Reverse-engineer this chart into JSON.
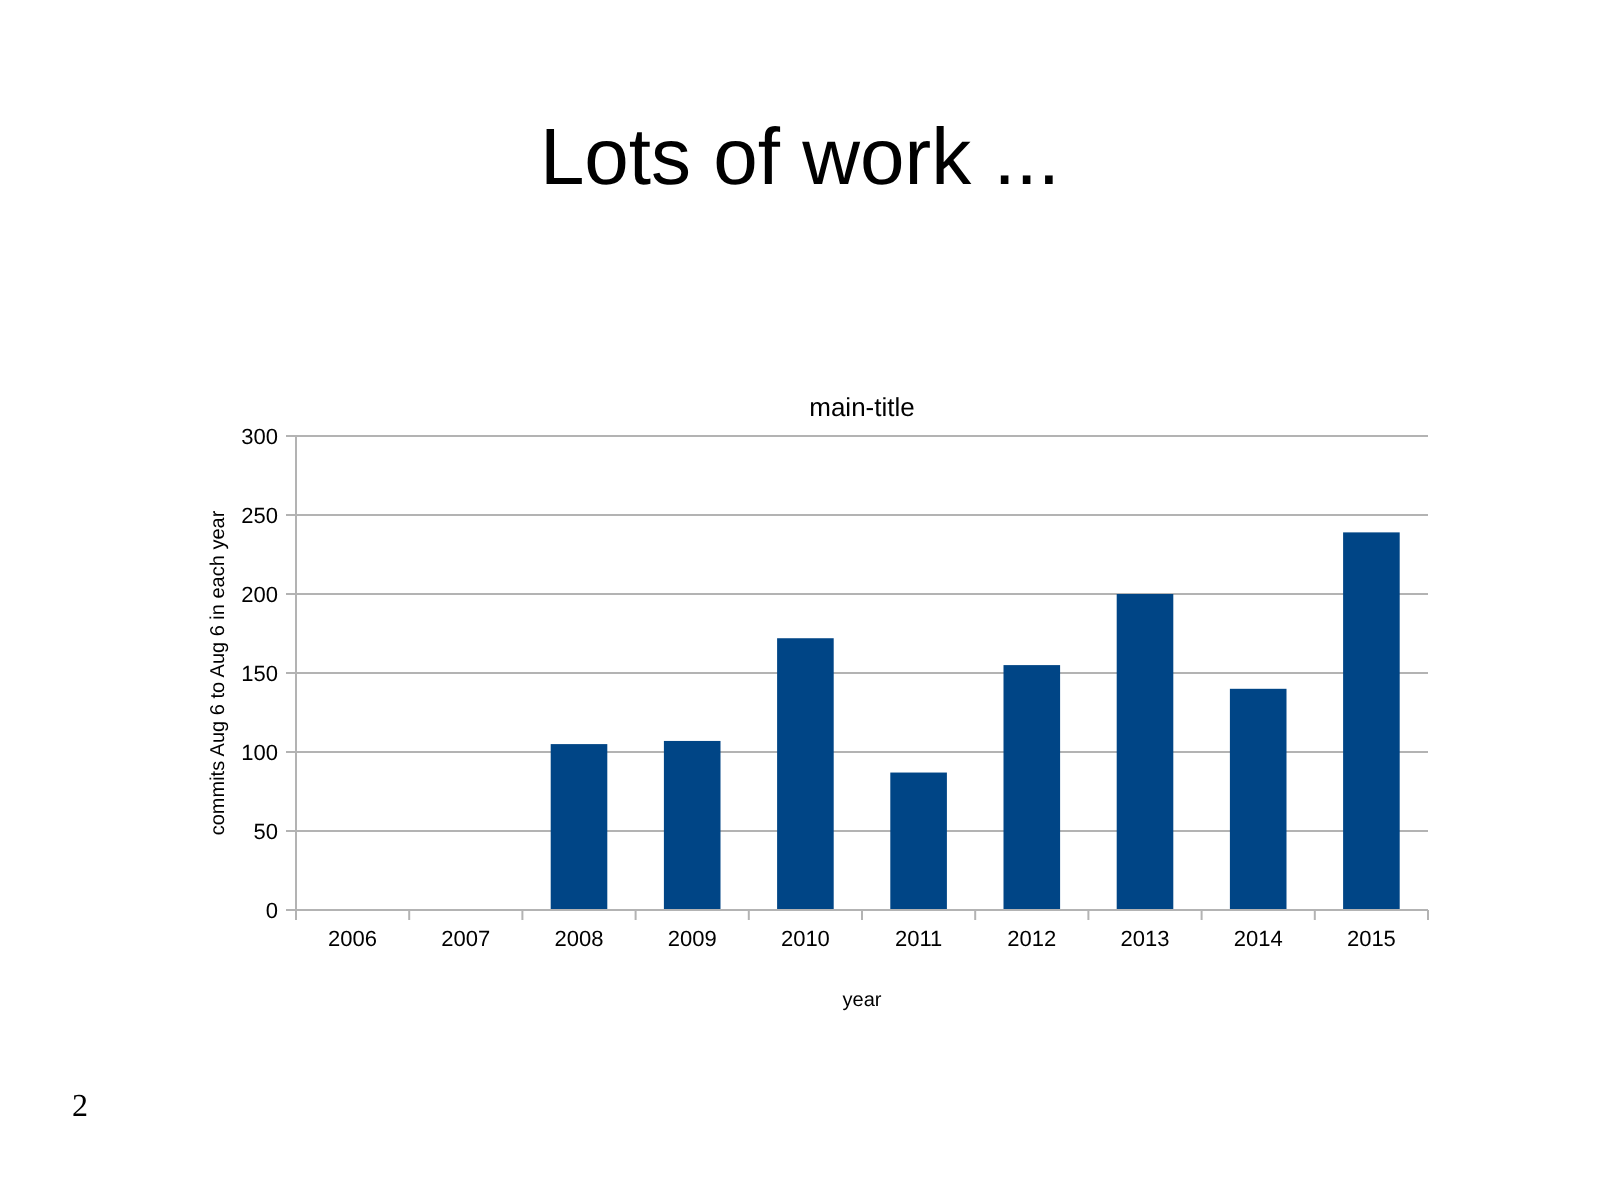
{
  "chart_data": {
    "type": "bar",
    "title": "Lots of work ...",
    "subtitle": "main-title",
    "xlabel": "year",
    "ylabel": "commits Aug 6 to Aug 6 in each year",
    "categories": [
      "2006",
      "2007",
      "2008",
      "2009",
      "2010",
      "2011",
      "2012",
      "2013",
      "2014",
      "2015"
    ],
    "values": [
      0,
      0,
      105,
      107,
      172,
      87,
      155,
      200,
      140,
      239
    ],
    "color": "#004586",
    "ylim": [
      0,
      300
    ],
    "yticks": [
      0,
      50,
      100,
      150,
      200,
      250,
      300
    ],
    "grid": "y",
    "annotations": [
      "2"
    ]
  }
}
